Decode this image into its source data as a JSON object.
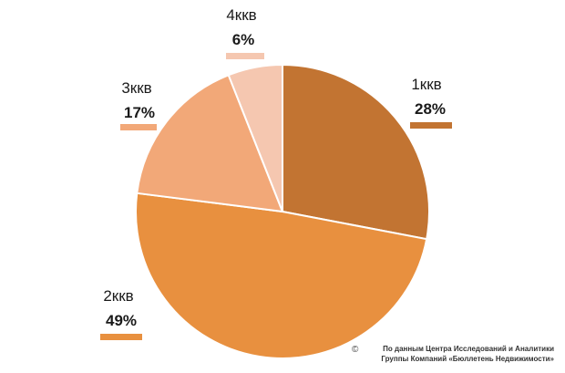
{
  "chart_data": {
    "type": "pie",
    "start_angle_deg": 0,
    "direction": "clockwise",
    "slices": [
      {
        "label": "1ккв",
        "value": 28,
        "value_label": "28%",
        "color": "#c27432"
      },
      {
        "label": "2ккв",
        "value": 49,
        "value_label": "49%",
        "color": "#e8903f"
      },
      {
        "label": "3ккв",
        "value": 17,
        "value_label": "17%",
        "color": "#f2a878"
      },
      {
        "label": "4ккв",
        "value": 6,
        "value_label": "6%",
        "color": "#f5c7b0"
      }
    ],
    "title": "",
    "legend": "none"
  },
  "source": {
    "symbol": "©",
    "line1": "По данным Центра Исследований и Аналитики",
    "line2": "Группы Компаний «Бюллетень Недвижимости»"
  }
}
